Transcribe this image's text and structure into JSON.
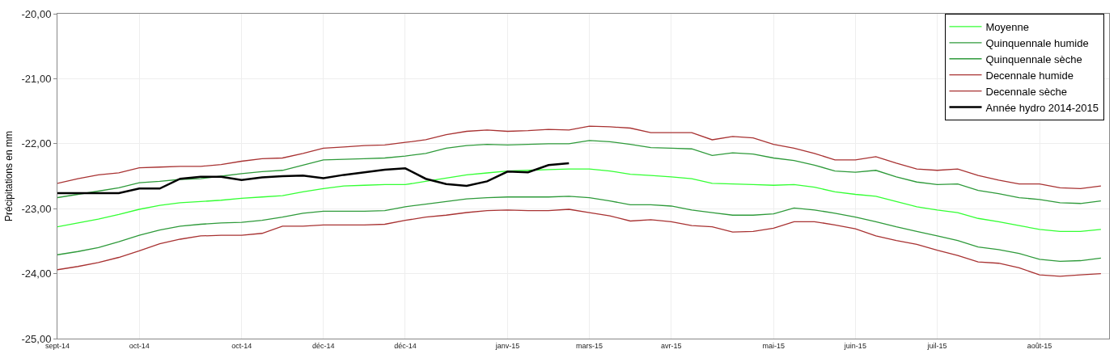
{
  "chart_data": {
    "type": "line",
    "ylabel": "Précipitations en mm",
    "categories": [
      "sept-14",
      null,
      null,
      null,
      "oct-14",
      null,
      null,
      null,
      null,
      "oct-14",
      null,
      null,
      null,
      "déc-14",
      null,
      null,
      null,
      "déc-14",
      null,
      null,
      null,
      null,
      "janv-15",
      null,
      null,
      null,
      "mars-15",
      null,
      null,
      null,
      "avr-15",
      null,
      null,
      null,
      null,
      "mai-15",
      null,
      null,
      null,
      "juin-15",
      null,
      null,
      null,
      "juil-15",
      null,
      null,
      null,
      null,
      "août-15",
      null,
      null,
      null
    ],
    "ylim": [
      -25,
      -20
    ],
    "yticks": [
      {
        "value": -25,
        "label": "-25,00"
      },
      {
        "value": -24,
        "label": "-24,00"
      },
      {
        "value": -23,
        "label": "-23,00"
      },
      {
        "value": -22,
        "label": "-22,00"
      },
      {
        "value": -21,
        "label": "-21,00"
      },
      {
        "value": -20,
        "label": "-20,00"
      }
    ],
    "grid": true,
    "legend": "top right",
    "marker": "none",
    "line_style": "solid",
    "series": [
      {
        "name": "Moyenne",
        "color": "#33ff33",
        "values": [
          -23.28,
          -23.22,
          -23.16,
          -23.09,
          -23.01,
          -22.95,
          -22.91,
          -22.89,
          -22.87,
          -22.84,
          -22.82,
          -22.8,
          -22.74,
          -22.69,
          -22.65,
          -22.64,
          -22.63,
          -22.63,
          -22.58,
          -22.53,
          -22.48,
          -22.45,
          -22.42,
          -22.41,
          -22.4,
          -22.39,
          -22.39,
          -22.42,
          -22.47,
          -22.49,
          -22.51,
          -22.54,
          -22.61,
          -22.62,
          -22.63,
          -22.64,
          -22.63,
          -22.67,
          -22.74,
          -22.78,
          -22.81,
          -22.89,
          -22.97,
          -23.02,
          -23.06,
          -23.15,
          -23.2,
          -23.26,
          -23.32,
          -23.35,
          -23.35,
          -23.32
        ]
      },
      {
        "name": "Quinquennale humide",
        "color": "#2e9a3a",
        "values": [
          -22.83,
          -22.78,
          -22.73,
          -22.68,
          -22.6,
          -22.58,
          -22.55,
          -22.54,
          -22.5,
          -22.46,
          -22.43,
          -22.41,
          -22.33,
          -22.25,
          -22.24,
          -22.23,
          -22.22,
          -22.19,
          -22.15,
          -22.07,
          -22.03,
          -22.01,
          -22.02,
          -22.01,
          -22.0,
          -22.0,
          -21.95,
          -21.97,
          -22.01,
          -22.06,
          -22.07,
          -22.08,
          -22.18,
          -22.14,
          -22.16,
          -22.22,
          -22.26,
          -22.33,
          -22.42,
          -22.44,
          -22.41,
          -22.51,
          -22.59,
          -22.63,
          -22.62,
          -22.72,
          -22.77,
          -22.83,
          -22.86,
          -22.91,
          -22.92,
          -22.88
        ]
      },
      {
        "name": "Quinquennale sèche",
        "color": "#2e9a3a",
        "values": [
          -23.71,
          -23.66,
          -23.6,
          -23.51,
          -23.41,
          -23.33,
          -23.27,
          -23.24,
          -23.22,
          -23.21,
          -23.18,
          -23.13,
          -23.07,
          -23.04,
          -23.04,
          -23.04,
          -23.03,
          -22.97,
          -22.93,
          -22.89,
          -22.85,
          -22.83,
          -22.82,
          -22.82,
          -22.82,
          -22.81,
          -22.83,
          -22.88,
          -22.94,
          -22.94,
          -22.96,
          -23.02,
          -23.06,
          -23.1,
          -23.1,
          -23.08,
          -22.99,
          -23.02,
          -23.07,
          -23.13,
          -23.2,
          -23.28,
          -23.35,
          -23.42,
          -23.49,
          -23.59,
          -23.63,
          -23.69,
          -23.78,
          -23.81,
          -23.8,
          -23.76
        ]
      },
      {
        "name": "Decennale humide",
        "color": "#a83232",
        "values": [
          -22.61,
          -22.54,
          -22.48,
          -22.45,
          -22.37,
          -22.36,
          -22.35,
          -22.35,
          -22.32,
          -22.27,
          -22.23,
          -22.22,
          -22.15,
          -22.07,
          -22.05,
          -22.03,
          -22.02,
          -21.98,
          -21.94,
          -21.86,
          -21.81,
          -21.79,
          -21.81,
          -21.8,
          -21.78,
          -21.79,
          -21.73,
          -21.74,
          -21.76,
          -21.83,
          -21.83,
          -21.83,
          -21.94,
          -21.89,
          -21.91,
          -22.01,
          -22.07,
          -22.15,
          -22.25,
          -22.25,
          -22.2,
          -22.3,
          -22.39,
          -22.41,
          -22.39,
          -22.49,
          -22.56,
          -22.62,
          -22.62,
          -22.68,
          -22.69,
          -22.65
        ]
      },
      {
        "name": "Decennale sèche",
        "color": "#a83232",
        "values": [
          -23.94,
          -23.89,
          -23.83,
          -23.75,
          -23.65,
          -23.54,
          -23.47,
          -23.42,
          -23.41,
          -23.41,
          -23.38,
          -23.27,
          -23.27,
          -23.25,
          -23.25,
          -23.25,
          -23.24,
          -23.18,
          -23.13,
          -23.1,
          -23.06,
          -23.03,
          -23.02,
          -23.03,
          -23.03,
          -23.01,
          -23.06,
          -23.11,
          -23.19,
          -23.17,
          -23.2,
          -23.26,
          -23.28,
          -23.36,
          -23.35,
          -23.3,
          -23.2,
          -23.2,
          -23.25,
          -23.31,
          -23.42,
          -23.49,
          -23.55,
          -23.64,
          -23.72,
          -23.82,
          -23.84,
          -23.91,
          -24.02,
          -24.04,
          -24.02,
          -24.0
        ]
      },
      {
        "name": "Année hydro 2014-2015",
        "color": "#000000",
        "values": [
          -22.76,
          -22.76,
          -22.76,
          -22.76,
          -22.69,
          -22.69,
          -22.54,
          -22.51,
          -22.51,
          -22.56,
          -22.52,
          -22.5,
          -22.49,
          -22.53,
          -22.48,
          -22.44,
          -22.4,
          -22.38,
          -22.54,
          -22.62,
          -22.65,
          -22.58,
          -22.43,
          -22.44,
          -22.33,
          -22.3,
          null,
          null,
          null,
          null,
          null,
          null,
          null,
          null,
          null,
          null,
          null,
          null,
          null,
          null,
          null,
          null,
          null,
          null,
          null,
          null,
          null,
          null,
          null,
          null,
          null,
          null
        ]
      }
    ]
  }
}
